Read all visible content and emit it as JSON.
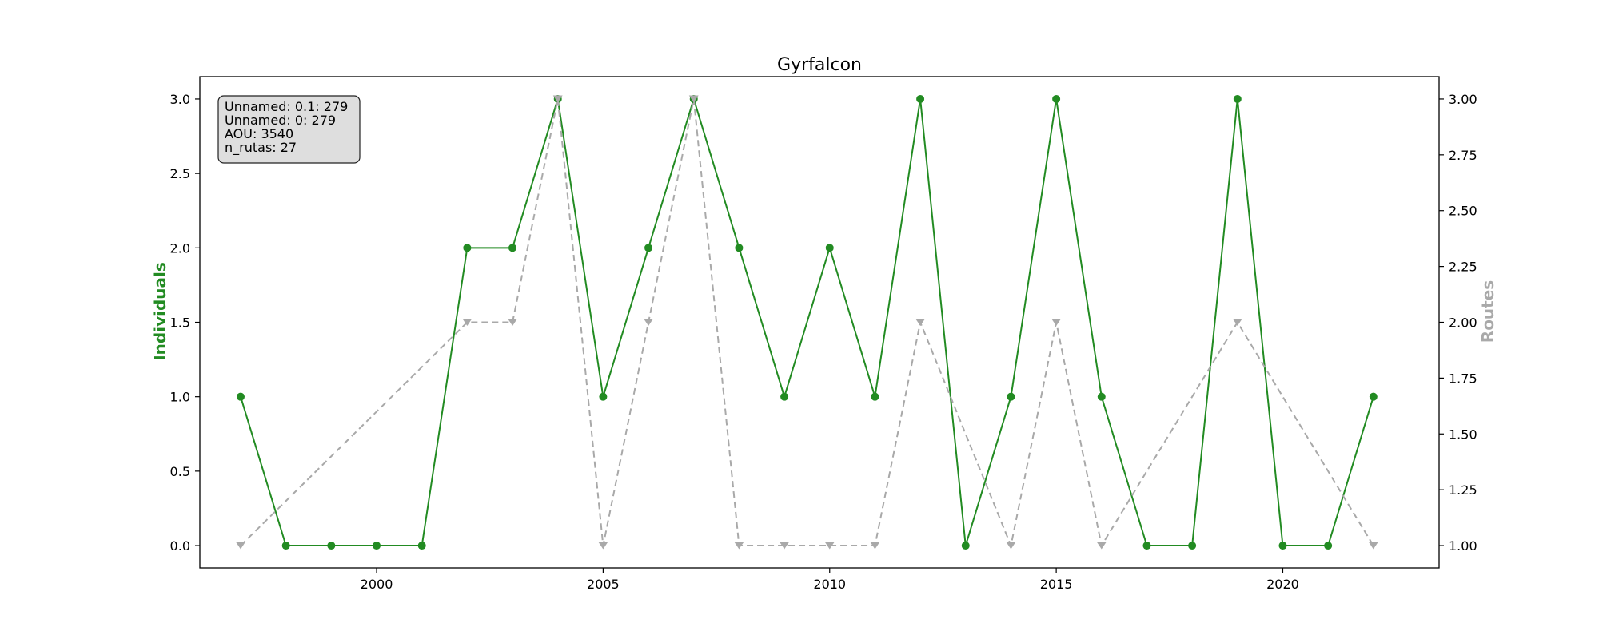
{
  "chart_data": {
    "type": "line",
    "title": "Gyrfalcon",
    "xlabel": "",
    "ylabel": "Individuals",
    "y2label": "Routes",
    "xlim": [
      1996.1,
      2023.45
    ],
    "ylim": [
      -0.15,
      3.15
    ],
    "y2lim": [
      0.9,
      3.1
    ],
    "x_ticks": [
      2000,
      2005,
      2010,
      2015,
      2020
    ],
    "y_ticks": [
      "0.0",
      "0.5",
      "1.0",
      "1.5",
      "2.0",
      "2.5",
      "3.0"
    ],
    "y2_ticks": [
      "1.00",
      "1.25",
      "1.50",
      "1.75",
      "2.00",
      "2.25",
      "2.50",
      "2.75",
      "3.00"
    ],
    "grid": false,
    "x": [
      1997,
      1998,
      1999,
      2000,
      2001,
      2002,
      2003,
      2004,
      2005,
      2006,
      2007,
      2008,
      2009,
      2010,
      2011,
      2012,
      2013,
      2014,
      2015,
      2016,
      2017,
      2018,
      2019,
      2020,
      2021,
      2022
    ],
    "series": [
      {
        "name": "Individuals",
        "axis": "left",
        "color": "#228b22",
        "marker": "circle",
        "linestyle": "solid",
        "values": [
          1,
          0,
          0,
          0,
          0,
          2,
          2,
          3,
          1,
          2,
          3,
          2,
          1,
          2,
          1,
          3,
          0,
          1,
          3,
          1,
          0,
          0,
          3,
          0,
          0,
          1
        ]
      },
      {
        "name": "Routes",
        "axis": "right",
        "color": "#a9a9a9",
        "marker": "triangle-down",
        "linestyle": "dashed",
        "x": [
          1997,
          2002,
          2003,
          2004,
          2005,
          2006,
          2007,
          2008,
          2009,
          2010,
          2011,
          2012,
          2014,
          2015,
          2016,
          2019,
          2022
        ],
        "values": [
          1,
          2,
          2,
          3,
          1,
          2,
          3,
          1,
          1,
          1,
          1,
          2,
          1,
          2,
          1,
          2,
          1
        ]
      }
    ],
    "info_box": {
      "lines": [
        "Unnamed: 0.1: 279",
        "Unnamed: 0: 279",
        "AOU: 3540",
        "n_rutas: 27"
      ],
      "placement": "top-left"
    }
  }
}
